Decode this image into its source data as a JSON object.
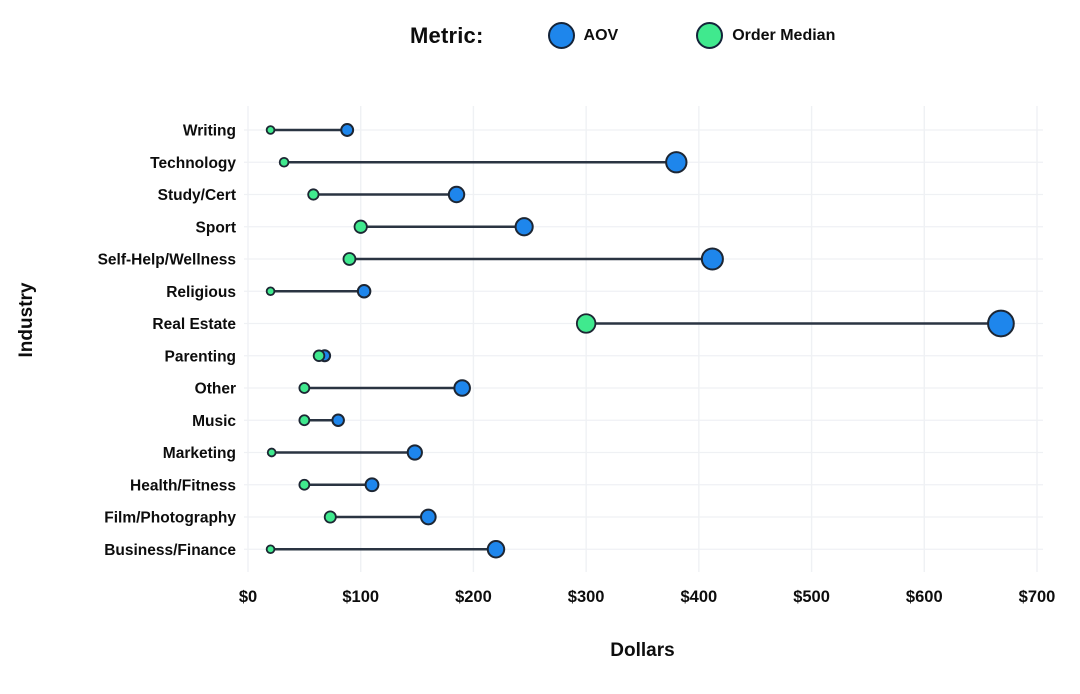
{
  "legend": {
    "title": "Metric:",
    "items": [
      {
        "label": "AOV",
        "color": "#1e86ec"
      },
      {
        "label": "Order Median",
        "color": "#40e98e"
      }
    ]
  },
  "chart_data": {
    "type": "scatter",
    "variant": "dumbbell",
    "title": "",
    "xlabel": "Dollars",
    "ylabel": "Industry",
    "xlim": [
      0,
      700
    ],
    "grid": true,
    "legend_position": "top",
    "xticks": [
      {
        "value": 0,
        "label": "$0"
      },
      {
        "value": 100,
        "label": "$100"
      },
      {
        "value": 200,
        "label": "$200"
      },
      {
        "value": 300,
        "label": "$300"
      },
      {
        "value": 400,
        "label": "$400"
      },
      {
        "value": 500,
        "label": "$500"
      },
      {
        "value": 600,
        "label": "$600"
      },
      {
        "value": 700,
        "label": "$700"
      }
    ],
    "categories": [
      "Writing",
      "Technology",
      "Study/Cert",
      "Sport",
      "Self-Help/Wellness",
      "Religious",
      "Real Estate",
      "Parenting",
      "Other",
      "Music",
      "Marketing",
      "Health/Fitness",
      "Film/Photography",
      "Business/Finance"
    ],
    "series": [
      {
        "name": "AOV",
        "color": "#1e86ec",
        "values": [
          88,
          380,
          185,
          245,
          412,
          103,
          668,
          68,
          190,
          80,
          148,
          110,
          160,
          220
        ]
      },
      {
        "name": "Order Median",
        "color": "#40e98e",
        "values": [
          20,
          32,
          58,
          100,
          90,
          20,
          300,
          63,
          50,
          50,
          21,
          50,
          73,
          20
        ]
      }
    ],
    "marker_outline": "#1d2633",
    "connector_color": "#2a3442",
    "gridline_color": "#eff1f4"
  }
}
